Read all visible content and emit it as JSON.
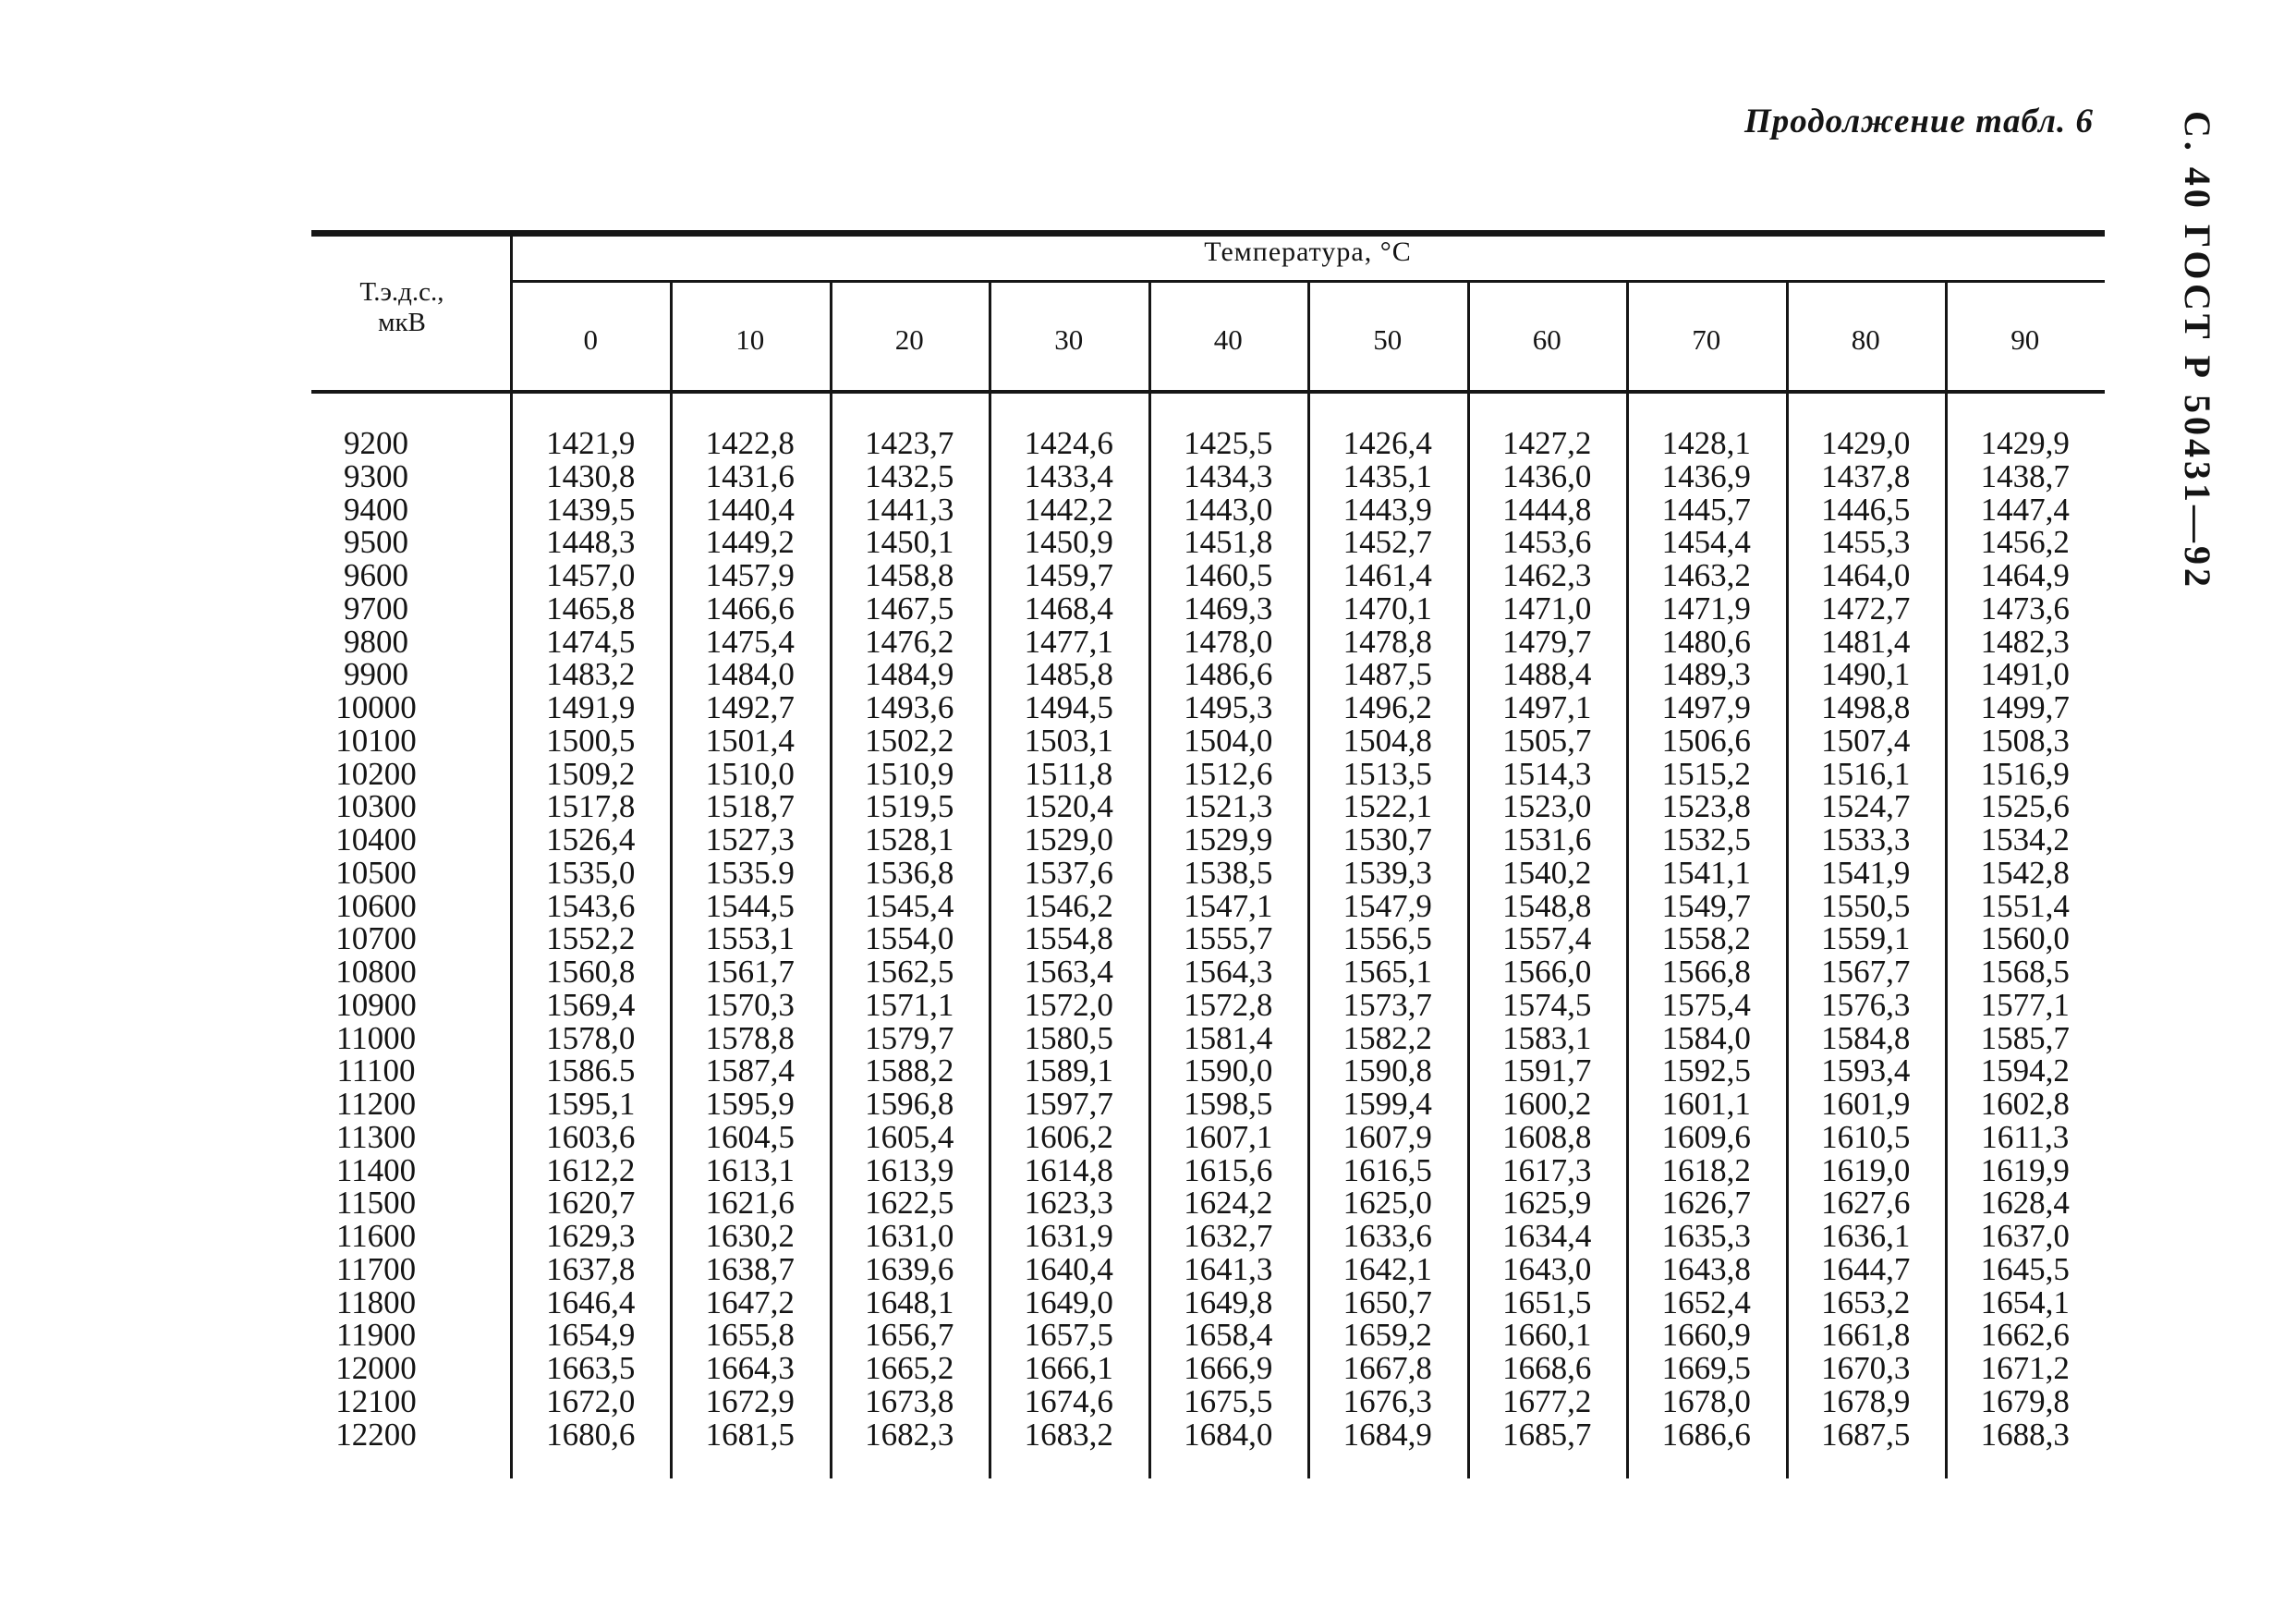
{
  "page": {
    "continuation_note": "Продолжение табл. 6",
    "side_stamp": "С. 40 ГОСТ Р 50431—92"
  },
  "table": {
    "corner_header_line1": "Т.э.д.с.,",
    "corner_header_line2": "мкВ",
    "group_header": "Температура, °С",
    "column_headers": [
      "0",
      "10",
      "20",
      "30",
      "40",
      "50",
      "60",
      "70",
      "80",
      "90"
    ],
    "rows": [
      {
        "label": "9200",
        "values": [
          "1421,9",
          "1422,8",
          "1423,7",
          "1424,6",
          "1425,5",
          "1426,4",
          "1427,2",
          "1428,1",
          "1429,0",
          "1429,9"
        ]
      },
      {
        "label": "9300",
        "values": [
          "1430,8",
          "1431,6",
          "1432,5",
          "1433,4",
          "1434,3",
          "1435,1",
          "1436,0",
          "1436,9",
          "1437,8",
          "1438,7"
        ]
      },
      {
        "label": "9400",
        "values": [
          "1439,5",
          "1440,4",
          "1441,3",
          "1442,2",
          "1443,0",
          "1443,9",
          "1444,8",
          "1445,7",
          "1446,5",
          "1447,4"
        ]
      },
      {
        "label": "9500",
        "values": [
          "1448,3",
          "1449,2",
          "1450,1",
          "1450,9",
          "1451,8",
          "1452,7",
          "1453,6",
          "1454,4",
          "1455,3",
          "1456,2"
        ]
      },
      {
        "label": "9600",
        "values": [
          "1457,0",
          "1457,9",
          "1458,8",
          "1459,7",
          "1460,5",
          "1461,4",
          "1462,3",
          "1463,2",
          "1464,0",
          "1464,9"
        ]
      },
      {
        "label": "9700",
        "values": [
          "1465,8",
          "1466,6",
          "1467,5",
          "1468,4",
          "1469,3",
          "1470,1",
          "1471,0",
          "1471,9",
          "1472,7",
          "1473,6"
        ]
      },
      {
        "label": "9800",
        "values": [
          "1474,5",
          "1475,4",
          "1476,2",
          "1477,1",
          "1478,0",
          "1478,8",
          "1479,7",
          "1480,6",
          "1481,4",
          "1482,3"
        ]
      },
      {
        "label": "9900",
        "values": [
          "1483,2",
          "1484,0",
          "1484,9",
          "1485,8",
          "1486,6",
          "1487,5",
          "1488,4",
          "1489,3",
          "1490,1",
          "1491,0"
        ]
      },
      {
        "label": "10000",
        "values": [
          "1491,9",
          "1492,7",
          "1493,6",
          "1494,5",
          "1495,3",
          "1496,2",
          "1497,1",
          "1497,9",
          "1498,8",
          "1499,7"
        ]
      },
      {
        "label": "10100",
        "values": [
          "1500,5",
          "1501,4",
          "1502,2",
          "1503,1",
          "1504,0",
          "1504,8",
          "1505,7",
          "1506,6",
          "1507,4",
          "1508,3"
        ]
      },
      {
        "label": "10200",
        "values": [
          "1509,2",
          "1510,0",
          "1510,9",
          "1511,8",
          "1512,6",
          "1513,5",
          "1514,3",
          "1515,2",
          "1516,1",
          "1516,9"
        ]
      },
      {
        "label": "10300",
        "values": [
          "1517,8",
          "1518,7",
          "1519,5",
          "1520,4",
          "1521,3",
          "1522,1",
          "1523,0",
          "1523,8",
          "1524,7",
          "1525,6"
        ]
      },
      {
        "label": "10400",
        "values": [
          "1526,4",
          "1527,3",
          "1528,1",
          "1529,0",
          "1529,9",
          "1530,7",
          "1531,6",
          "1532,5",
          "1533,3",
          "1534,2"
        ]
      },
      {
        "label": "10500",
        "values": [
          "1535,0",
          "1535.9",
          "1536,8",
          "1537,6",
          "1538,5",
          "1539,3",
          "1540,2",
          "1541,1",
          "1541,9",
          "1542,8"
        ]
      },
      {
        "label": "10600",
        "values": [
          "1543,6",
          "1544,5",
          "1545,4",
          "1546,2",
          "1547,1",
          "1547,9",
          "1548,8",
          "1549,7",
          "1550,5",
          "1551,4"
        ]
      },
      {
        "label": "10700",
        "values": [
          "1552,2",
          "1553,1",
          "1554,0",
          "1554,8",
          "1555,7",
          "1556,5",
          "1557,4",
          "1558,2",
          "1559,1",
          "1560,0"
        ]
      },
      {
        "label": "10800",
        "values": [
          "1560,8",
          "1561,7",
          "1562,5",
          "1563,4",
          "1564,3",
          "1565,1",
          "1566,0",
          "1566,8",
          "1567,7",
          "1568,5"
        ]
      },
      {
        "label": "10900",
        "values": [
          "1569,4",
          "1570,3",
          "1571,1",
          "1572,0",
          "1572,8",
          "1573,7",
          "1574,5",
          "1575,4",
          "1576,3",
          "1577,1"
        ]
      },
      {
        "label": "11000",
        "values": [
          "1578,0",
          "1578,8",
          "1579,7",
          "1580,5",
          "1581,4",
          "1582,2",
          "1583,1",
          "1584,0",
          "1584,8",
          "1585,7"
        ]
      },
      {
        "label": "11100",
        "values": [
          "1586.5",
          "1587,4",
          "1588,2",
          "1589,1",
          "1590,0",
          "1590,8",
          "1591,7",
          "1592,5",
          "1593,4",
          "1594,2"
        ]
      },
      {
        "label": "11200",
        "values": [
          "1595,1",
          "1595,9",
          "1596,8",
          "1597,7",
          "1598,5",
          "1599,4",
          "1600,2",
          "1601,1",
          "1601,9",
          "1602,8"
        ]
      },
      {
        "label": "11300",
        "values": [
          "1603,6",
          "1604,5",
          "1605,4",
          "1606,2",
          "1607,1",
          "1607,9",
          "1608,8",
          "1609,6",
          "1610,5",
          "1611,3"
        ]
      },
      {
        "label": "11400",
        "values": [
          "1612,2",
          "1613,1",
          "1613,9",
          "1614,8",
          "1615,6",
          "1616,5",
          "1617,3",
          "1618,2",
          "1619,0",
          "1619,9"
        ]
      },
      {
        "label": "11500",
        "values": [
          "1620,7",
          "1621,6",
          "1622,5",
          "1623,3",
          "1624,2",
          "1625,0",
          "1625,9",
          "1626,7",
          "1627,6",
          "1628,4"
        ]
      },
      {
        "label": "11600",
        "values": [
          "1629,3",
          "1630,2",
          "1631,0",
          "1631,9",
          "1632,7",
          "1633,6",
          "1634,4",
          "1635,3",
          "1636,1",
          "1637,0"
        ]
      },
      {
        "label": "11700",
        "values": [
          "1637,8",
          "1638,7",
          "1639,6",
          "1640,4",
          "1641,3",
          "1642,1",
          "1643,0",
          "1643,8",
          "1644,7",
          "1645,5"
        ]
      },
      {
        "label": "11800",
        "values": [
          "1646,4",
          "1647,2",
          "1648,1",
          "1649,0",
          "1649,8",
          "1650,7",
          "1651,5",
          "1652,4",
          "1653,2",
          "1654,1"
        ]
      },
      {
        "label": "11900",
        "values": [
          "1654,9",
          "1655,8",
          "1656,7",
          "1657,5",
          "1658,4",
          "1659,2",
          "1660,1",
          "1660,9",
          "1661,8",
          "1662,6"
        ]
      },
      {
        "label": "12000",
        "values": [
          "1663,5",
          "1664,3",
          "1665,2",
          "1666,1",
          "1666,9",
          "1667,8",
          "1668,6",
          "1669,5",
          "1670,3",
          "1671,2"
        ]
      },
      {
        "label": "12100",
        "values": [
          "1672,0",
          "1672,9",
          "1673,8",
          "1674,6",
          "1675,5",
          "1676,3",
          "1677,2",
          "1678,0",
          "1678,9",
          "1679,8"
        ]
      },
      {
        "label": "12200",
        "values": [
          "1680,6",
          "1681,5",
          "1682,3",
          "1683,2",
          "1684,0",
          "1684,9",
          "1685,7",
          "1686,6",
          "1687,5",
          "1688,3"
        ]
      }
    ]
  }
}
